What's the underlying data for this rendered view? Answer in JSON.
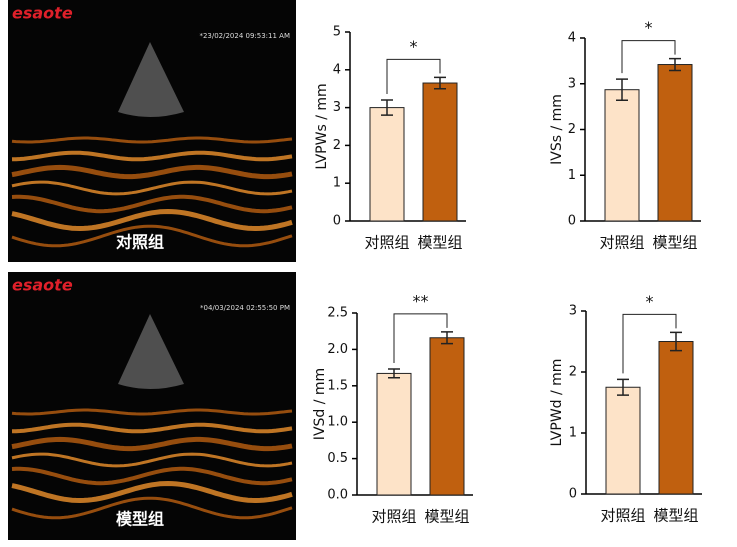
{
  "images": [
    {
      "brand": "esaote",
      "timestamp": "*23/02/2024 09:53:11 AM",
      "label": "对照组"
    },
    {
      "brand": "esaote",
      "timestamp": "*04/03/2024 02:55:50 PM",
      "label": "模型组"
    }
  ],
  "chart_data": [
    {
      "type": "bar",
      "ylabel": "LVPWs / mm",
      "categories": [
        "对照组",
        "模型组"
      ],
      "values": [
        3.0,
        3.65
      ],
      "errors": [
        0.2,
        0.15
      ],
      "colors": [
        "#fde3c8",
        "#c0600f"
      ],
      "ylim": [
        0,
        5
      ],
      "yticks": [
        0,
        1,
        2,
        3,
        4,
        5
      ],
      "significance": "*"
    },
    {
      "type": "bar",
      "ylabel": "IVSs / mm",
      "categories": [
        "对照组",
        "模型组"
      ],
      "values": [
        2.87,
        3.42
      ],
      "errors": [
        0.23,
        0.13
      ],
      "colors": [
        "#fde3c8",
        "#c0600f"
      ],
      "ylim": [
        0,
        4
      ],
      "yticks": [
        0,
        1,
        2,
        3,
        4
      ],
      "significance": "*"
    },
    {
      "type": "bar",
      "ylabel": "IVSd / mm",
      "categories": [
        "对照组",
        "模型组"
      ],
      "values": [
        1.67,
        2.16
      ],
      "errors": [
        0.06,
        0.08
      ],
      "colors": [
        "#fde3c8",
        "#c0600f"
      ],
      "ylim": [
        0,
        2.5
      ],
      "yticks": [
        {
          "value": 0,
          "label": "0.0"
        },
        0.5,
        {
          "value": 1,
          "label": "1.0"
        },
        1.5,
        {
          "value": 2,
          "label": "2.0"
        },
        2.5
      ],
      "significance": "**"
    },
    {
      "type": "bar",
      "ylabel": "LVPWd / mm",
      "categories": [
        "对照组",
        "模型组"
      ],
      "values": [
        1.75,
        2.5
      ],
      "errors": [
        0.13,
        0.15
      ],
      "colors": [
        "#fde3c8",
        "#c0600f"
      ],
      "ylim": [
        0,
        3
      ],
      "yticks": [
        0,
        1,
        2,
        3
      ],
      "significance": "*"
    }
  ]
}
